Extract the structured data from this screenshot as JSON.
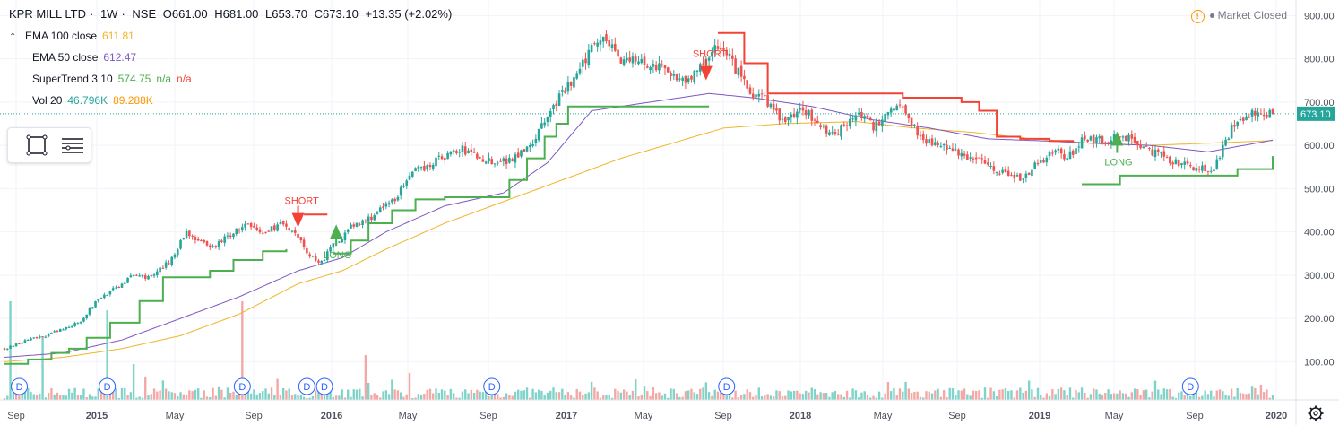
{
  "header": {
    "symbol": "KPR MILL LTD",
    "interval": "1W",
    "exchange": "NSE",
    "open": "O661.00",
    "high": "H681.00",
    "low": "L653.70",
    "close": "C673.10",
    "change": "+13.35 (+2.02%)"
  },
  "indicators": [
    {
      "label": "EMA 100 close",
      "value": "611.81",
      "value_color": "#f0b429"
    },
    {
      "label": "EMA 50 close",
      "value": "612.47",
      "value_color": "#7e57c2"
    },
    {
      "label": "SuperTrend 3 10",
      "value": "574.75",
      "value2": "n/a",
      "value3": "n/a",
      "value_color": "#4caf50",
      "value2_color": "#f44336"
    },
    {
      "label": "Vol 20",
      "value": "46.796K",
      "value2": "89.288K",
      "value_color": "#26a69a",
      "value2_color": "#ff9800"
    }
  ],
  "status": {
    "text": "Market Closed"
  },
  "colors": {
    "up": "#26a69a",
    "down": "#ef5350",
    "ema100": "#f0b429",
    "ema50": "#7e57c2",
    "st_up": "#4caf50",
    "st_down": "#f44336",
    "grid": "#f0f3fa",
    "axis_text": "#4c525e",
    "price_label": "#131722"
  },
  "chart_data": {
    "type": "candlestick",
    "title": "KPR MILL LTD, 1W, NSE",
    "ylim": [
      55,
      905
    ],
    "x_range": [
      "2014-09",
      "2020-01"
    ],
    "y_ticks": [
      "100.00",
      "200.00",
      "300.00",
      "400.00",
      "500.00",
      "600.00",
      "700.00",
      "800.00",
      "900.00"
    ],
    "x_ticks": [
      "Sep",
      "2015",
      "May",
      "Sep",
      "2016",
      "May",
      "Sep",
      "2017",
      "May",
      "Sep",
      "2018",
      "May",
      "Sep",
      "2019",
      "May",
      "Sep",
      "2020"
    ],
    "last_price": "673.10",
    "price_anchors": [
      [
        0,
        130
      ],
      [
        8,
        150
      ],
      [
        14,
        160
      ],
      [
        20,
        175
      ],
      [
        26,
        195
      ],
      [
        32,
        245
      ],
      [
        38,
        270
      ],
      [
        44,
        300
      ],
      [
        50,
        295
      ],
      [
        56,
        330
      ],
      [
        62,
        400
      ],
      [
        66,
        380
      ],
      [
        70,
        360
      ],
      [
        76,
        390
      ],
      [
        82,
        415
      ],
      [
        88,
        395
      ],
      [
        94,
        420
      ],
      [
        100,
        385
      ],
      [
        104,
        345
      ],
      [
        108,
        330
      ],
      [
        112,
        370
      ],
      [
        118,
        410
      ],
      [
        124,
        430
      ],
      [
        132,
        470
      ],
      [
        140,
        540
      ],
      [
        150,
        575
      ],
      [
        156,
        590
      ],
      [
        164,
        565
      ],
      [
        172,
        565
      ],
      [
        180,
        610
      ],
      [
        188,
        700
      ],
      [
        196,
        770
      ],
      [
        200,
        830
      ],
      [
        204,
        860
      ],
      [
        210,
        800
      ],
      [
        218,
        790
      ],
      [
        226,
        770
      ],
      [
        232,
        750
      ],
      [
        238,
        780
      ],
      [
        242,
        840
      ],
      [
        248,
        790
      ],
      [
        254,
        720
      ],
      [
        260,
        700
      ],
      [
        266,
        650
      ],
      [
        272,
        690
      ],
      [
        278,
        640
      ],
      [
        284,
        630
      ],
      [
        290,
        680
      ],
      [
        296,
        640
      ],
      [
        302,
        690
      ],
      [
        306,
        690
      ],
      [
        312,
        620
      ],
      [
        318,
        600
      ],
      [
        326,
        580
      ],
      [
        334,
        560
      ],
      [
        340,
        540
      ],
      [
        346,
        520
      ],
      [
        352,
        560
      ],
      [
        358,
        590
      ],
      [
        362,
        570
      ],
      [
        368,
        620
      ],
      [
        374,
        610
      ],
      [
        382,
        620
      ],
      [
        390,
        590
      ],
      [
        398,
        560
      ],
      [
        406,
        550
      ],
      [
        412,
        545
      ],
      [
        418,
        640
      ],
      [
        424,
        670
      ],
      [
        432,
        673
      ]
    ],
    "supertrend": [
      [
        0,
        95
      ],
      [
        8,
        105
      ],
      [
        16,
        120
      ],
      [
        22,
        130
      ],
      [
        28,
        155
      ],
      [
        36,
        190
      ],
      [
        46,
        240
      ],
      [
        54,
        295
      ],
      [
        70,
        310
      ],
      [
        78,
        335
      ],
      [
        88,
        355
      ],
      [
        96,
        360
      ],
      [
        101,
        null
      ],
      [
        102,
        440
      ],
      [
        110,
        440
      ],
      [
        111,
        null
      ],
      [
        112,
        350
      ],
      [
        118,
        380
      ],
      [
        124,
        420
      ],
      [
        132,
        450
      ],
      [
        140,
        475
      ],
      [
        150,
        480
      ],
      [
        160,
        480
      ],
      [
        168,
        480
      ],
      [
        172,
        520
      ],
      [
        178,
        570
      ],
      [
        184,
        620
      ],
      [
        188,
        650
      ],
      [
        192,
        690
      ],
      [
        200,
        690
      ],
      [
        230,
        690
      ],
      [
        240,
        690
      ],
      [
        242,
        null
      ],
      [
        243,
        860
      ],
      [
        246,
        860
      ],
      [
        252,
        790
      ],
      [
        260,
        720
      ],
      [
        280,
        720
      ],
      [
        300,
        720
      ],
      [
        306,
        710
      ],
      [
        318,
        710
      ],
      [
        326,
        700
      ],
      [
        332,
        680
      ],
      [
        338,
        620
      ],
      [
        346,
        615
      ],
      [
        356,
        610
      ],
      [
        364,
        612
      ],
      [
        366,
        null
      ],
      [
        367,
        510
      ],
      [
        380,
        530
      ],
      [
        400,
        530
      ],
      [
        420,
        545
      ],
      [
        432,
        575
      ]
    ],
    "ema50": [
      [
        0,
        110
      ],
      [
        20,
        120
      ],
      [
        40,
        150
      ],
      [
        60,
        200
      ],
      [
        80,
        250
      ],
      [
        100,
        310
      ],
      [
        115,
        340
      ],
      [
        130,
        400
      ],
      [
        150,
        460
      ],
      [
        170,
        490
      ],
      [
        185,
        560
      ],
      [
        200,
        680
      ],
      [
        220,
        700
      ],
      [
        240,
        720
      ],
      [
        255,
        710
      ],
      [
        275,
        690
      ],
      [
        295,
        660
      ],
      [
        315,
        640
      ],
      [
        335,
        615
      ],
      [
        355,
        610
      ],
      [
        370,
        605
      ],
      [
        390,
        600
      ],
      [
        410,
        585
      ],
      [
        432,
        612
      ]
    ],
    "ema100": [
      [
        0,
        100
      ],
      [
        20,
        110
      ],
      [
        40,
        130
      ],
      [
        60,
        160
      ],
      [
        80,
        210
      ],
      [
        100,
        280
      ],
      [
        115,
        310
      ],
      [
        130,
        360
      ],
      [
        150,
        420
      ],
      [
        170,
        470
      ],
      [
        190,
        520
      ],
      [
        210,
        570
      ],
      [
        230,
        610
      ],
      [
        245,
        640
      ],
      [
        265,
        650
      ],
      [
        290,
        655
      ],
      [
        310,
        640
      ],
      [
        330,
        630
      ],
      [
        350,
        615
      ],
      [
        370,
        605
      ],
      [
        390,
        600
      ],
      [
        410,
        605
      ],
      [
        432,
        611
      ]
    ],
    "dividend_markers": [
      2,
      35,
      81,
      103,
      109,
      166,
      246,
      404
    ],
    "annotations": [
      {
        "label": "SHORT",
        "kind": "sell",
        "bar": 100,
        "price": 460
      },
      {
        "label": "LONG",
        "kind": "buy",
        "bar": 113,
        "price": 380
      },
      {
        "label": "SHORT",
        "kind": "sell",
        "bar": 239,
        "price": 800
      },
      {
        "label": "LONG",
        "kind": "buy",
        "bar": 379,
        "price": 595
      }
    ],
    "bar_count": 433,
    "volume_note": "Vol 20 average 46.796K"
  }
}
